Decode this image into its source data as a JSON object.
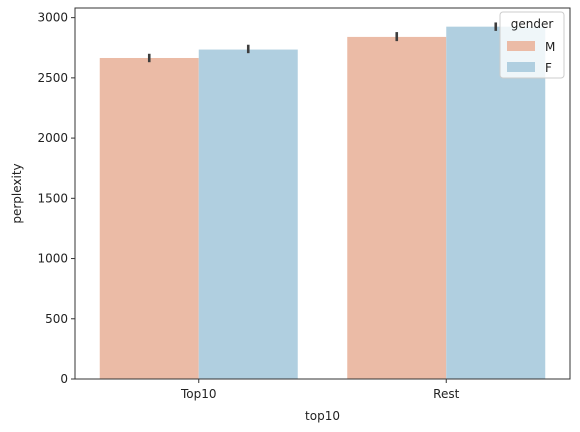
{
  "chart_data": {
    "type": "bar",
    "title": "",
    "xlabel": "top10",
    "ylabel": "perplexity",
    "categories": [
      "Top10",
      "Rest"
    ],
    "ylim": [
      0,
      3080
    ],
    "yticks": [
      0,
      500,
      1000,
      1500,
      2000,
      2500,
      3000
    ],
    "grid": false,
    "legend": {
      "title": "gender",
      "placement": "top-right"
    },
    "series": [
      {
        "name": "M",
        "color": "#ebbba6",
        "values": [
          2665,
          2840
        ],
        "error": [
          [
            2630,
            2700
          ],
          [
            2805,
            2880
          ]
        ]
      },
      {
        "name": "F",
        "color": "#b0cfe0",
        "values": [
          2735,
          2925
        ],
        "error": [
          [
            2705,
            2775
          ],
          [
            2890,
            2960
          ]
        ]
      }
    ]
  }
}
